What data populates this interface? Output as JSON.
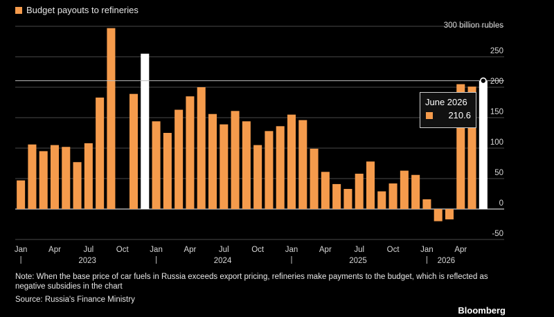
{
  "legend": {
    "label": "Budget payouts to refineries",
    "color": "#f59b4c"
  },
  "unit_label": "300 billion rubles",
  "tooltip": {
    "title": "June 2026",
    "value": "210.6"
  },
  "note": "Note: When the base price of car fuels in Russia exceeds export pricing, refineries make payments to the budget, which is reflected as negative subsidies in the chart",
  "source": "Source: Russia's Finance Ministry",
  "brand": "Bloomberg",
  "colors": {
    "bar": "#f59b4c",
    "highlight": "#ffffff",
    "background": "#000000"
  },
  "chart_data": {
    "type": "bar",
    "series": [
      {
        "name": "Budget payouts to refineries",
        "months": [
          "2023-01",
          "2023-02",
          "2023-03",
          "2023-04",
          "2023-05",
          "2023-06",
          "2023-07",
          "2023-08",
          "2023-09",
          "2023-10",
          "2023-11",
          "2023-12",
          "2024-01",
          "2024-02",
          "2024-03",
          "2024-04",
          "2024-05",
          "2024-06",
          "2024-07",
          "2024-08",
          "2024-09",
          "2024-10",
          "2024-11",
          "2024-12",
          "2025-01",
          "2025-02",
          "2025-03",
          "2025-04",
          "2025-05",
          "2025-06",
          "2025-07",
          "2025-08",
          "2025-09",
          "2025-10",
          "2025-11",
          "2025-12",
          "2026-01",
          "2026-02",
          "2026-03",
          "2026-04",
          "2026-05",
          "2026-06"
        ],
        "values": [
          47,
          106,
          95,
          105,
          102,
          77,
          108,
          183,
          297,
          null,
          189,
          255,
          144,
          125,
          163,
          185,
          200,
          156,
          139,
          161,
          144,
          105,
          128,
          136,
          155,
          146,
          99,
          61,
          41,
          33,
          58,
          78,
          29,
          42,
          63,
          56,
          16,
          -20,
          -17,
          205,
          201,
          210.6
        ],
        "highlighted": [
          "2023-12",
          "2026-06"
        ]
      }
    ],
    "y_ticks": [
      -50,
      0,
      50,
      100,
      150,
      200,
      250,
      300
    ],
    "ylim": [
      -50,
      300
    ],
    "x_tick_labels": [
      {
        "month": "2023-01",
        "label": "Jan"
      },
      {
        "month": "2023-04",
        "label": "Apr"
      },
      {
        "month": "2023-07",
        "label": "Jul"
      },
      {
        "month": "2023-10",
        "label": "Oct"
      },
      {
        "month": "2024-01",
        "label": "Jan"
      },
      {
        "month": "2024-04",
        "label": "Apr"
      },
      {
        "month": "2024-07",
        "label": "Jul"
      },
      {
        "month": "2024-10",
        "label": "Oct"
      },
      {
        "month": "2025-01",
        "label": "Jan"
      },
      {
        "month": "2025-04",
        "label": "Apr"
      },
      {
        "month": "2025-07",
        "label": "Jul"
      },
      {
        "month": "2025-10",
        "label": "Oct"
      },
      {
        "month": "2026-01",
        "label": "Jan"
      },
      {
        "month": "2026-04",
        "label": "Apr"
      }
    ],
    "year_labels": [
      "2023",
      "2024",
      "2025",
      "2026"
    ],
    "grid": true,
    "legend_position": "top-left",
    "y_axis_position": "right"
  }
}
